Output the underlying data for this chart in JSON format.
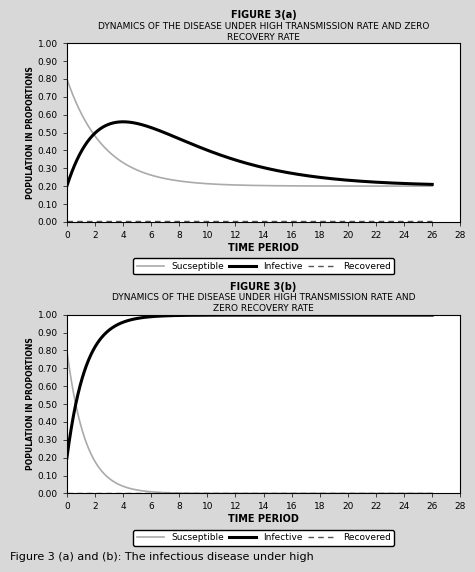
{
  "fig3a": {
    "title_bold": "FIGURE 3(a)",
    "title_main": "DYNAMICS OF THE DISEASE UNDER HIGH TRANSMISSION RATE AND ZERO\nRECOVERY RATE",
    "ylim": [
      0.0,
      1.0
    ],
    "xlim": [
      0,
      26
    ],
    "yticks": [
      0.0,
      0.1,
      0.2,
      0.3,
      0.4,
      0.5,
      0.6,
      0.7,
      0.8,
      0.9,
      1.0
    ],
    "xticks": [
      0,
      2,
      4,
      6,
      8,
      10,
      12,
      14,
      16,
      18,
      20,
      22,
      24,
      26,
      28
    ]
  },
  "fig3b": {
    "title_bold": "FIGURE 3(b)",
    "title_main": "DYNAMICS OF THE DISEASE UNDER HIGH TRANSMISSION RATE AND\nZERO RECOVERY RATE",
    "ylim": [
      0.0,
      1.0
    ],
    "xlim": [
      0,
      26
    ],
    "yticks": [
      0.0,
      0.1,
      0.2,
      0.3,
      0.4,
      0.5,
      0.6,
      0.7,
      0.8,
      0.9,
      1.0
    ],
    "xticks": [
      0,
      2,
      4,
      6,
      8,
      10,
      12,
      14,
      16,
      18,
      20,
      22,
      24,
      26,
      28
    ]
  },
  "ylabel": "POPULATION IN PROPORTIONS",
  "xlabel": "TIME PERIOD",
  "legend_labels": [
    "Sucseptible",
    "Infective",
    "Recovered"
  ],
  "susceptible_color": "#aaaaaa",
  "infective_color": "#000000",
  "recovered_color": "#555555",
  "plot_bg_color": "#ffffff",
  "fig_bg_color": "#d8d8d8",
  "caption": "Figure 3 (a) and (b): The infectious disease under high"
}
